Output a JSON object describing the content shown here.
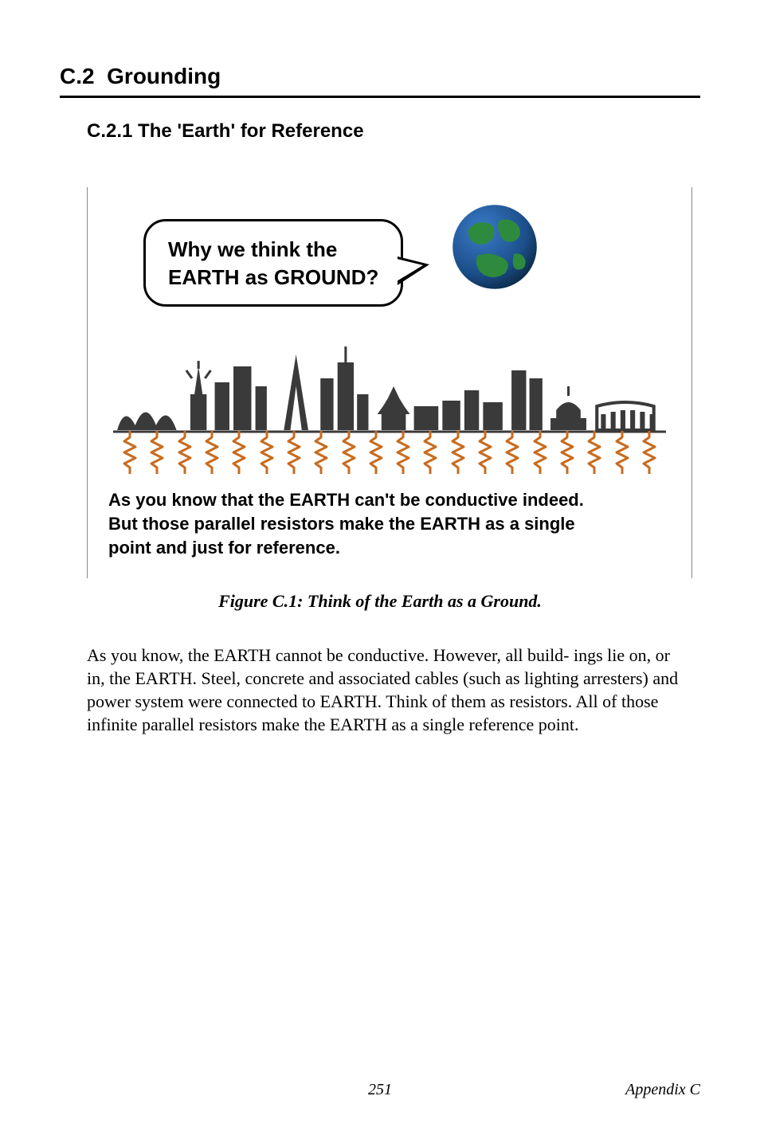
{
  "section": {
    "number": "C.2",
    "title": "Grounding"
  },
  "subsection": {
    "number": "C.2.1",
    "title": "The 'Earth' for Reference"
  },
  "figure": {
    "bubble_line1": "Why we think the",
    "bubble_line2": "EARTH as GROUND?",
    "globe_colors": {
      "ocean": "#1b4f8a",
      "land": "#2e8b3d",
      "shadow": "#0d2b4a"
    },
    "skyline_color": "#3a3a3a",
    "resistor_count": 20,
    "resistor_color": "#c96b1e",
    "explain_line1": "As you know that the EARTH can't be conductive indeed.",
    "explain_line2": "But those parallel resistors make the EARTH as a single",
    "explain_line3": "point and just for reference.",
    "caption": "Figure C.1: Think of the Earth as a Ground."
  },
  "body_text": "As you know, the EARTH cannot be conductive. However, all build- ings lie on, or in, the EARTH. Steel, concrete and associated cables (such as lighting arresters) and power system were connected to EARTH. Think of them as resistors. All of those infinite parallel resistors make the EARTH as a single reference point.",
  "footer": {
    "page": "251",
    "label": "Appendix C"
  },
  "fonts": {
    "heading_family": "Arial",
    "body_family": "Times New Roman",
    "section_size_pt": 21,
    "subsection_size_pt": 18,
    "figure_text_size_pt": 16,
    "caption_size_pt": 16,
    "body_size_pt": 16,
    "footer_size_pt": 15
  },
  "colors": {
    "text": "#000000",
    "background": "#ffffff",
    "rule": "#000000",
    "figure_border": "#888888"
  }
}
